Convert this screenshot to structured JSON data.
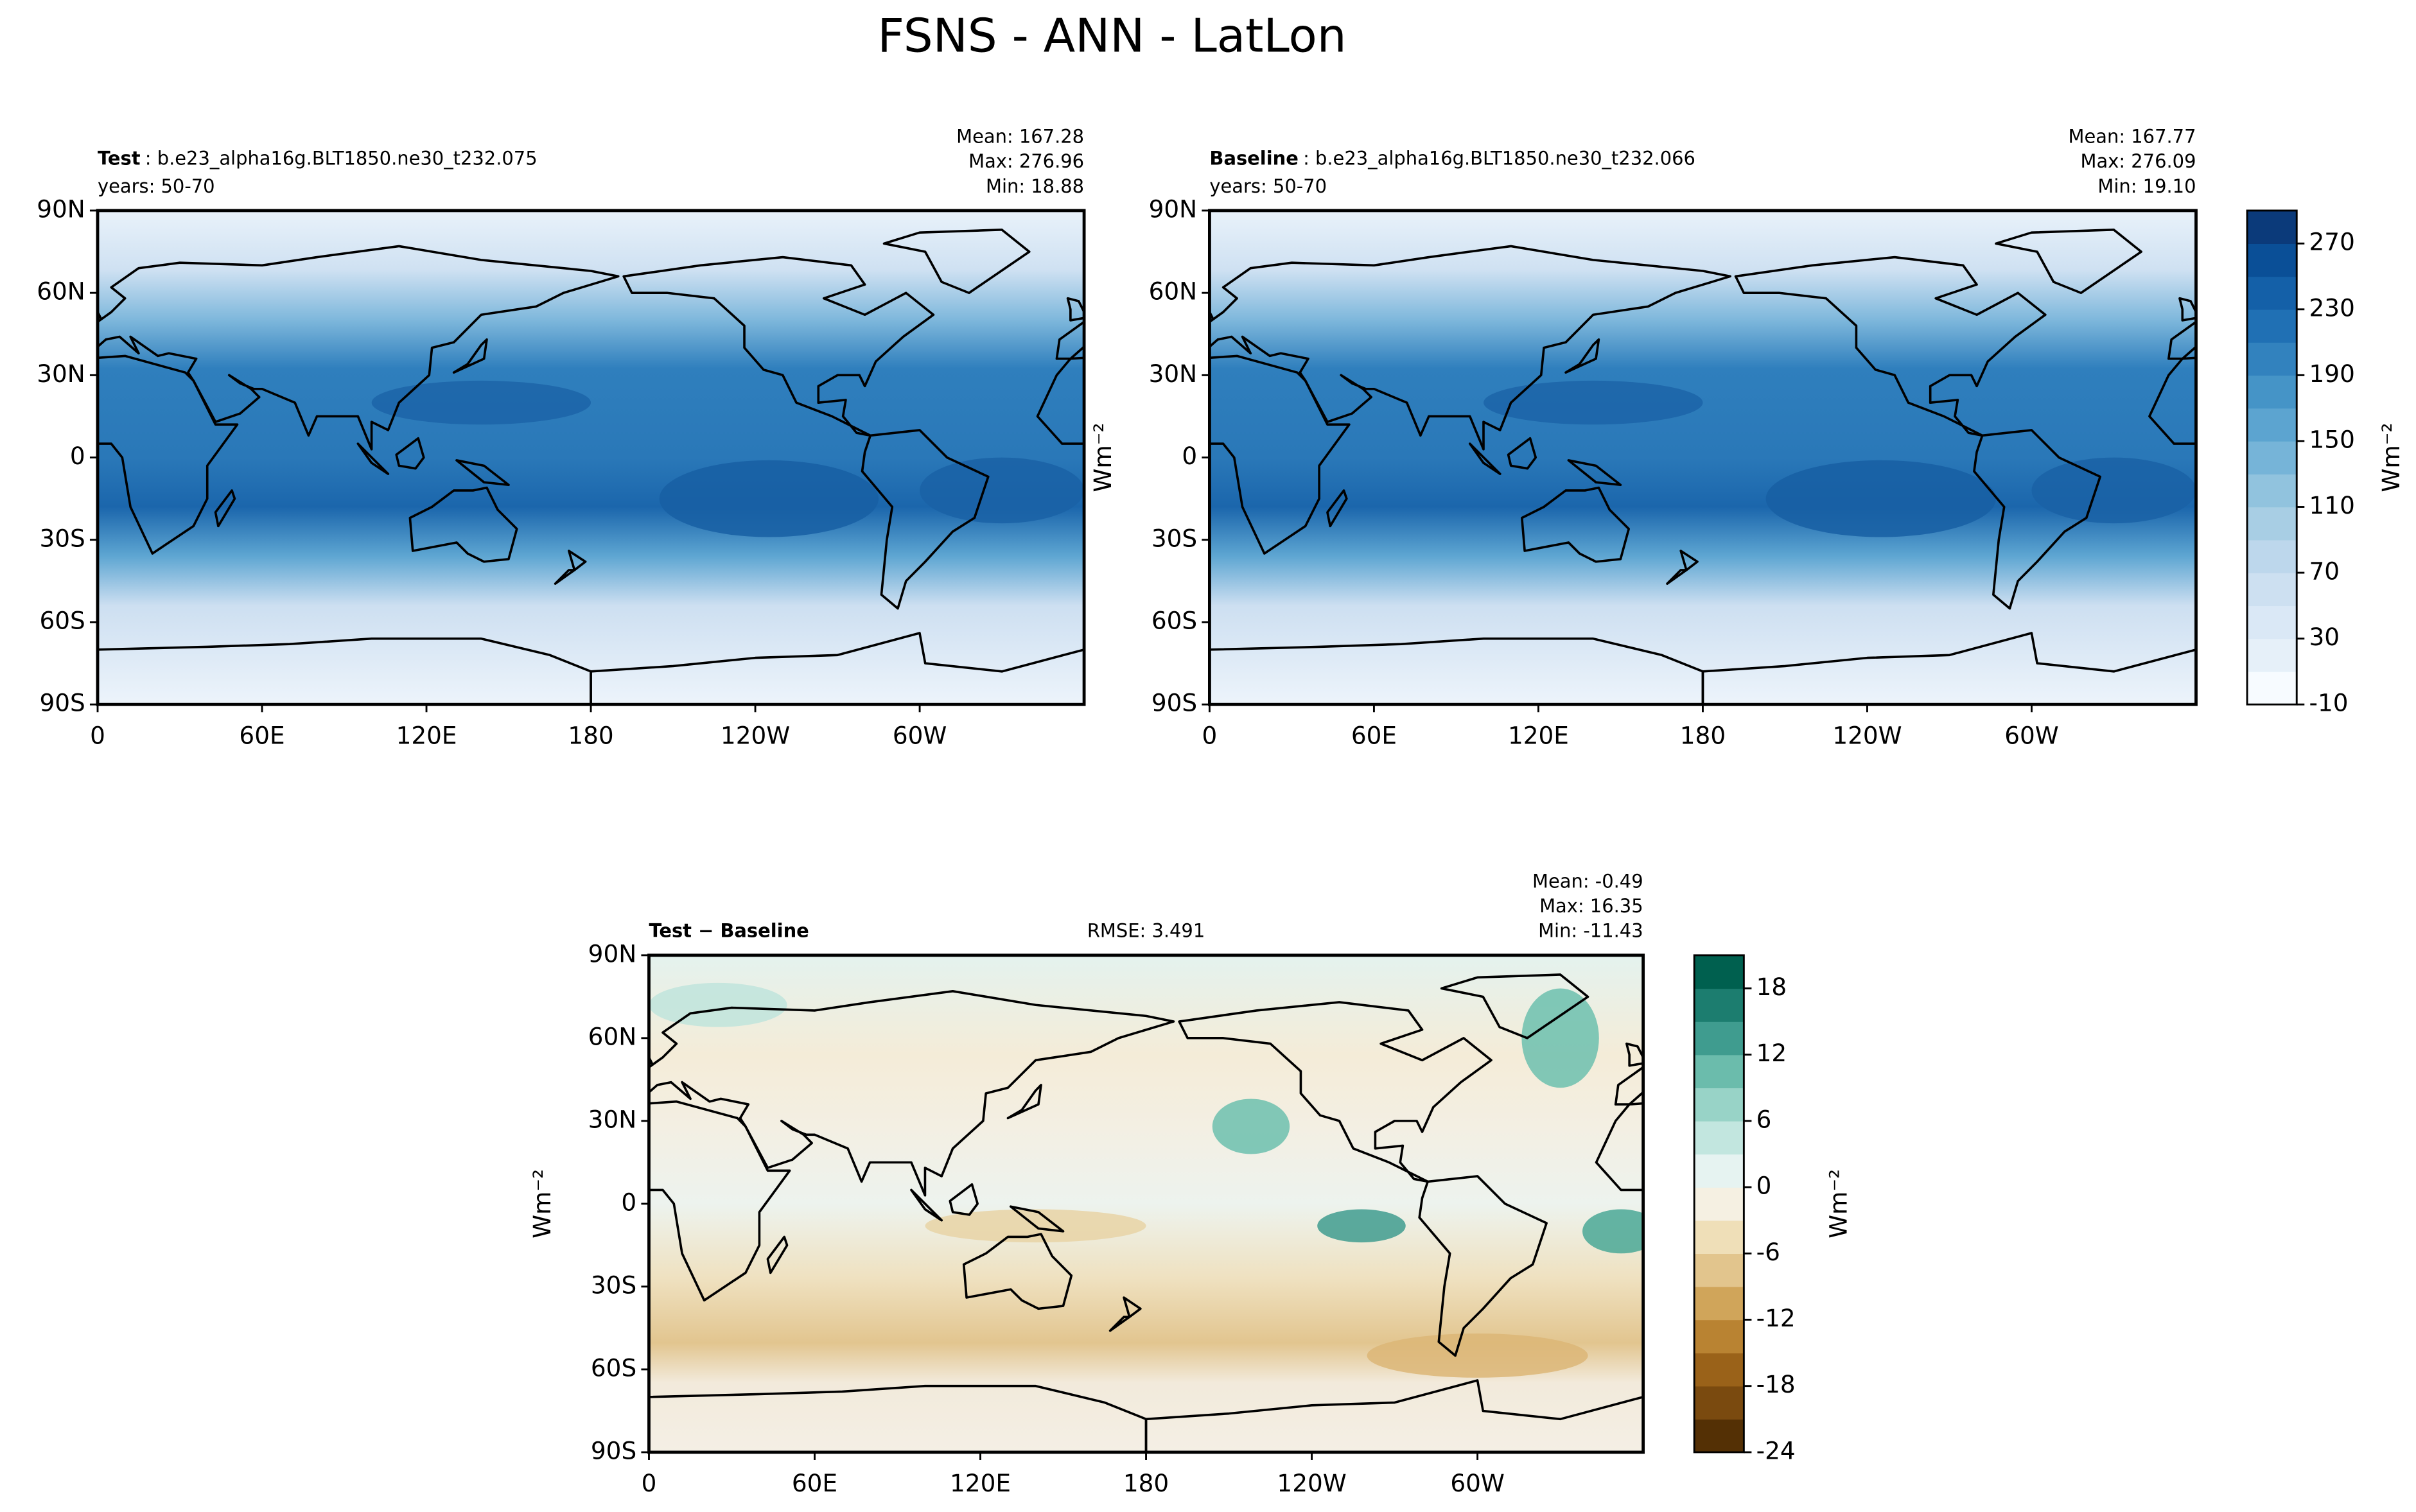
{
  "title": "FSNS - ANN - LatLon",
  "chart_data": [
    {
      "type": "contour",
      "label_bold": "Test",
      "label": ": b.e23_alpha16g.BLT1850.ne30_t232.075",
      "subtitle": "years: 50-70",
      "stats": [
        "Mean: 167.28",
        "Max: 276.96",
        "Min: 18.88"
      ],
      "xlim": [
        0,
        360
      ],
      "ylim": [
        -90,
        90
      ],
      "xticks": [
        0,
        {
          "value": 60,
          "label": "60E"
        },
        {
          "value": 120,
          "label": "120E"
        },
        180,
        {
          "value": 240,
          "label": "120W"
        },
        {
          "value": 300,
          "label": "60W"
        }
      ],
      "yticks": [
        {
          "value": 90,
          "label": "90N"
        },
        {
          "value": 60,
          "label": "60N"
        },
        {
          "value": 30,
          "label": "30N"
        },
        0,
        {
          "value": -30,
          "label": "30S"
        },
        {
          "value": -60,
          "label": "60S"
        },
        {
          "value": -90,
          "label": "90S"
        }
      ]
    },
    {
      "type": "contour",
      "label_bold": "Baseline",
      "label": ": b.e23_alpha16g.BLT1850.ne30_t232.066",
      "subtitle": "years: 50-70",
      "stats": [
        "Mean: 167.77",
        "Max: 276.09",
        "Min: 19.10"
      ],
      "ylabel": "Wm⁻²",
      "xlim": [
        0,
        360
      ],
      "ylim": [
        -90,
        90
      ],
      "xticks": [
        0,
        {
          "value": 60,
          "label": "60E"
        },
        {
          "value": 120,
          "label": "120E"
        },
        180,
        {
          "value": 240,
          "label": "120W"
        },
        {
          "value": 300,
          "label": "60W"
        }
      ],
      "yticks": [
        {
          "value": 90,
          "label": "90N"
        },
        {
          "value": 60,
          "label": "60N"
        },
        {
          "value": 30,
          "label": "30N"
        },
        0,
        {
          "value": -30,
          "label": "30S"
        },
        {
          "value": -60,
          "label": "60S"
        },
        {
          "value": -90,
          "label": "90S"
        }
      ],
      "colorbar": {
        "label": "Wm⁻²",
        "lim": [
          -10,
          290
        ],
        "ticks": [
          -10,
          30,
          70,
          110,
          150,
          190,
          230,
          270
        ],
        "colors": [
          "#f7fbff",
          "#e6f0f9",
          "#dae8f6",
          "#cde0f1",
          "#bdd7ec",
          "#a8cee4",
          "#91c3de",
          "#76b4d8",
          "#5ca4d0",
          "#4594c7",
          "#3282be",
          "#2070b4",
          "#1460a8",
          "#0a4f97",
          "#0b3a7a"
        ]
      }
    },
    {
      "type": "contour",
      "label_bold": "Test − Baseline",
      "rmse": "RMSE: 3.491",
      "stats": [
        "Mean: -0.49",
        "Max: 16.35",
        "Min: -11.43"
      ],
      "ylabel": "Wm⁻²",
      "xlim": [
        0,
        360
      ],
      "ylim": [
        -90,
        90
      ],
      "xticks": [
        0,
        {
          "value": 60,
          "label": "60E"
        },
        {
          "value": 120,
          "label": "120E"
        },
        180,
        {
          "value": 240,
          "label": "120W"
        },
        {
          "value": 300,
          "label": "60W"
        }
      ],
      "yticks": [
        {
          "value": 90,
          "label": "90N"
        },
        {
          "value": 60,
          "label": "60N"
        },
        {
          "value": 30,
          "label": "30N"
        },
        0,
        {
          "value": -30,
          "label": "30S"
        },
        {
          "value": -60,
          "label": "60S"
        },
        {
          "value": -90,
          "label": "90S"
        }
      ],
      "colorbar": {
        "label": "Wm⁻²",
        "lim": [
          -24,
          21
        ],
        "ticks": [
          -24,
          -18,
          -12,
          -6,
          0,
          6,
          12,
          18
        ],
        "colors": [
          "#543005",
          "#7a4a0f",
          "#9a6219",
          "#b98332",
          "#d0a55a",
          "#e2c58d",
          "#efdfb8",
          "#f5f0e2",
          "#e6f3f1",
          "#c2e6df",
          "#98d3c7",
          "#6bbcac",
          "#3f9c8f",
          "#1c7d6f",
          "#00604f"
        ]
      }
    }
  ]
}
